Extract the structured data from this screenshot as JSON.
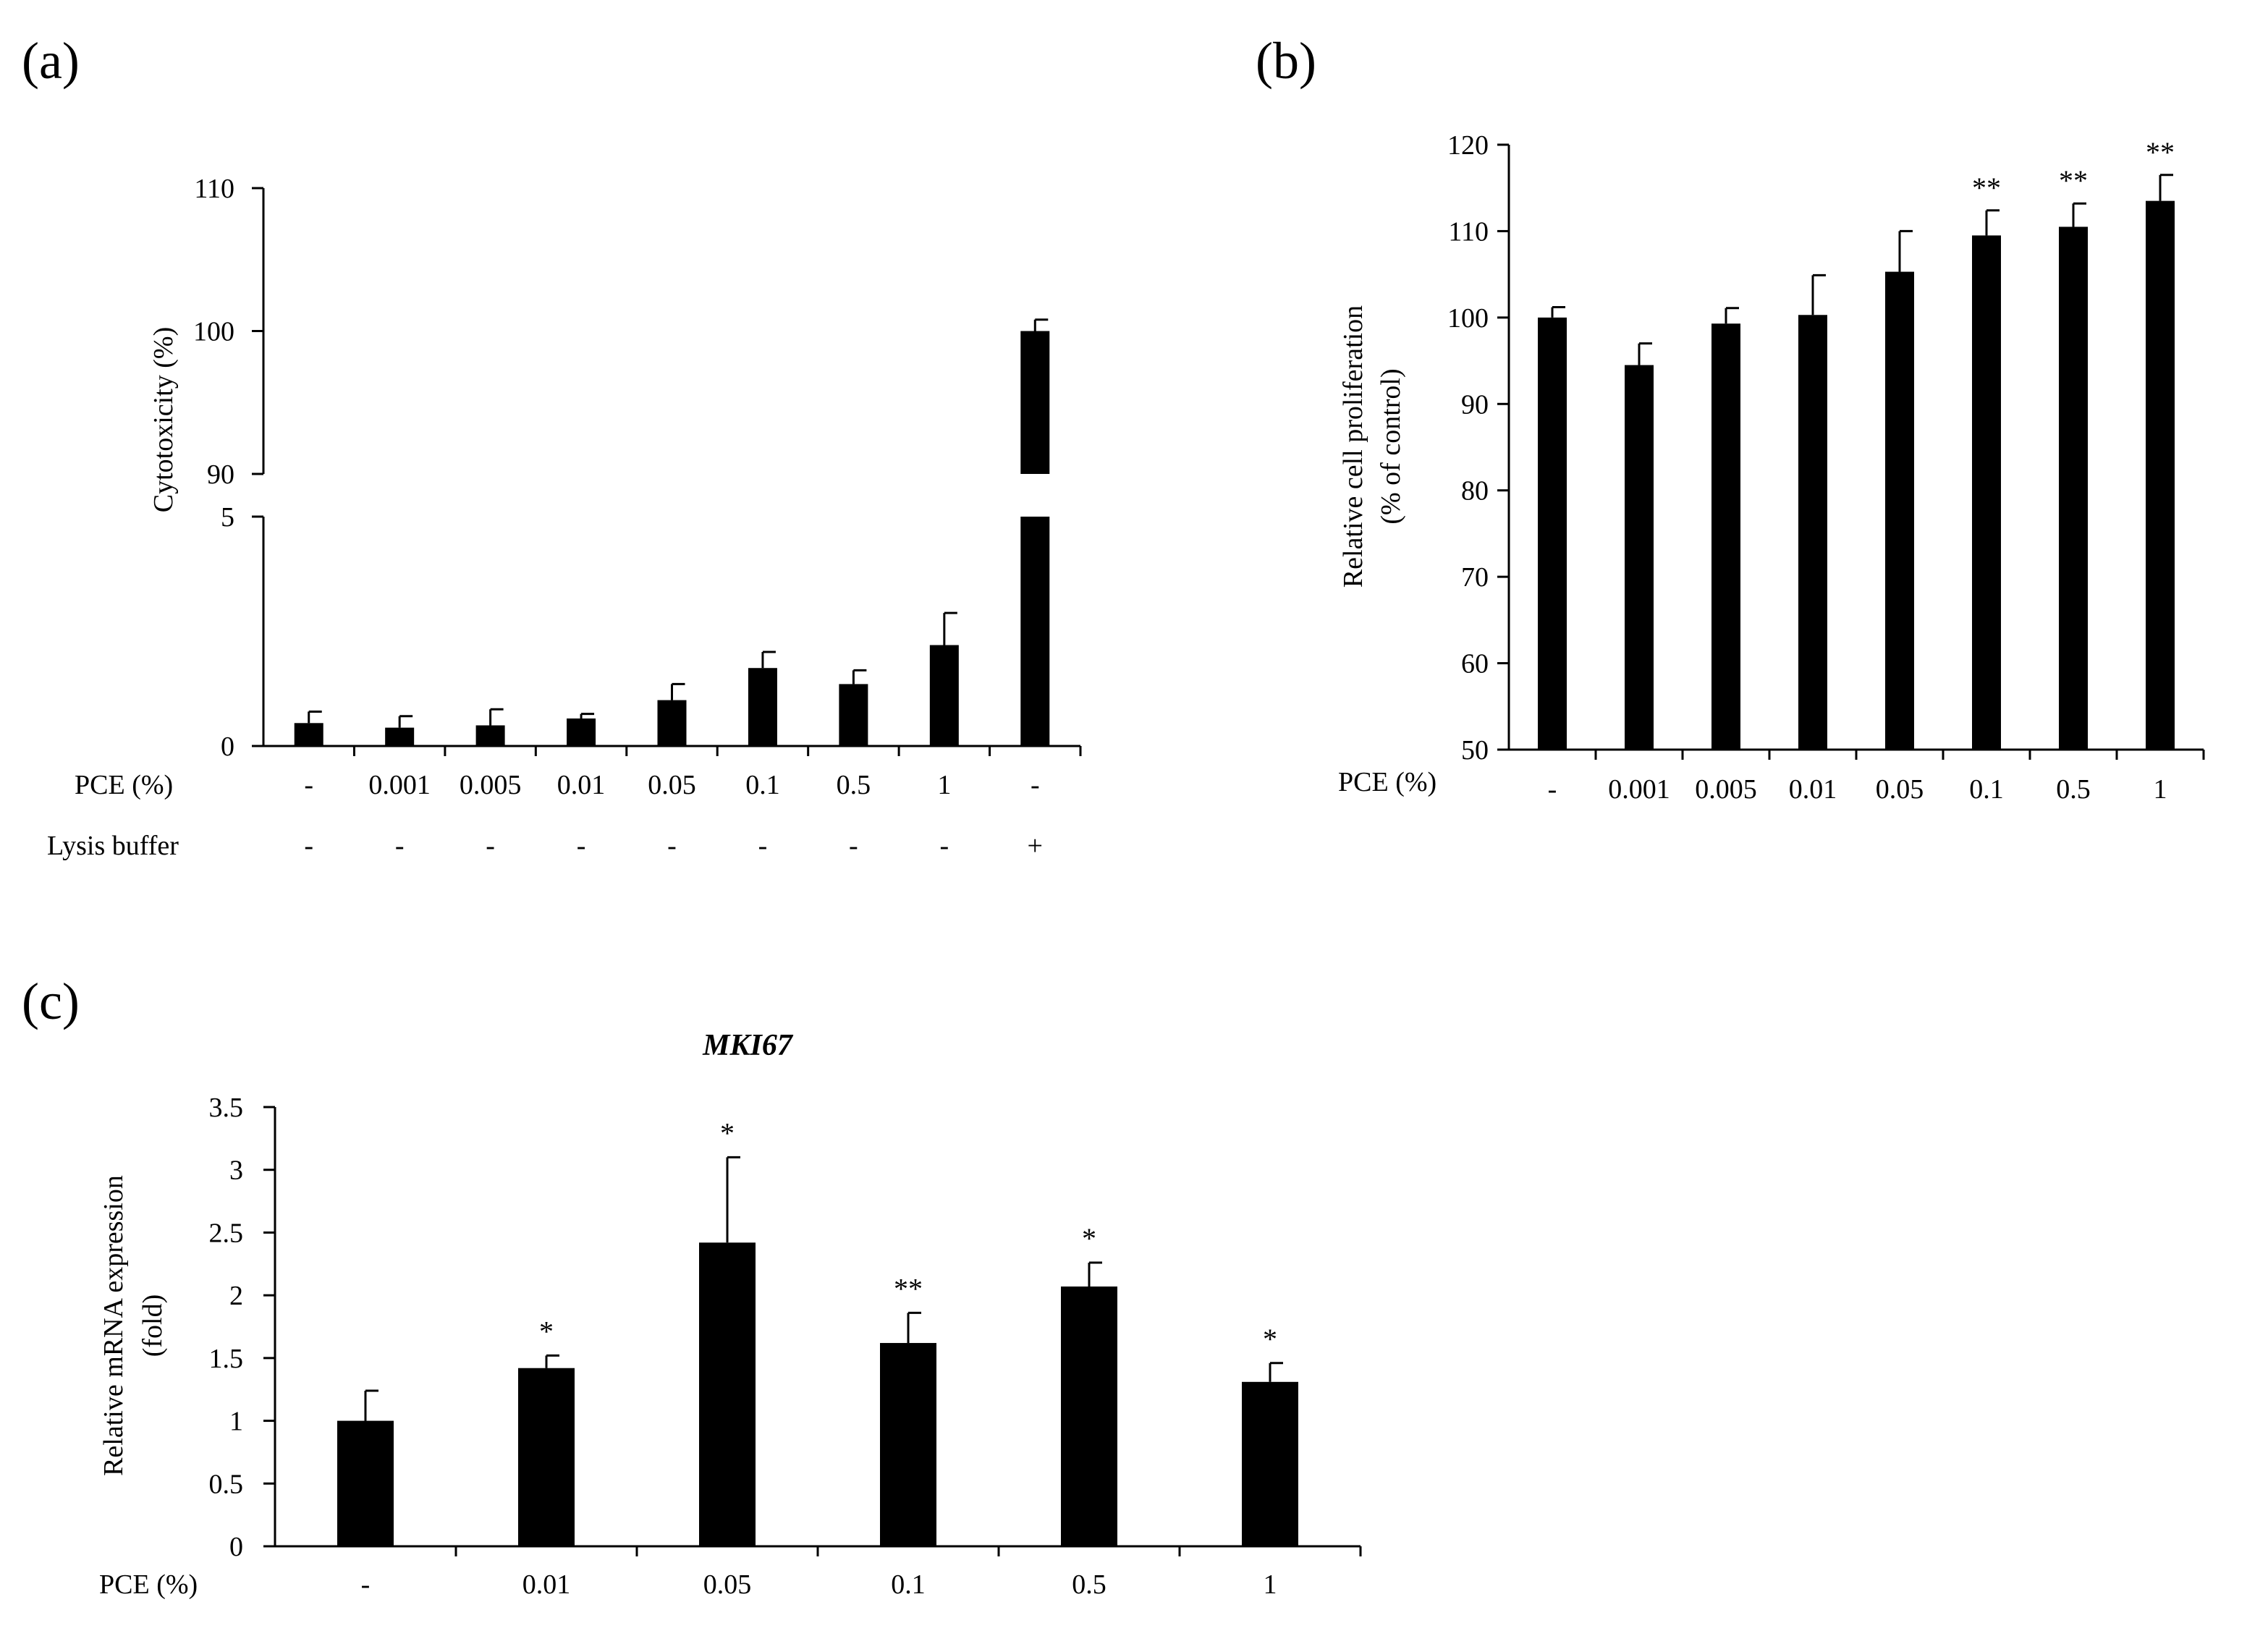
{
  "panels": {
    "a": "(a)",
    "b": "(b)",
    "c": "(c)"
  },
  "chart_data": [
    {
      "id": "a",
      "type": "bar",
      "title": "",
      "ylabel": "Cytotoxicity (%)",
      "axis_break": true,
      "ylim_lower": [
        0,
        5
      ],
      "ylim_upper": [
        90,
        110
      ],
      "yticks_lower": [
        "0",
        "5"
      ],
      "yticks_upper": [
        "90",
        "100",
        "110"
      ],
      "row_labels": [
        "PCE (%)",
        "Lysis buffer"
      ],
      "categories": [
        "-",
        "0.001",
        "0.005",
        "0.01",
        "0.05",
        "0.1",
        "0.5",
        "1",
        "-"
      ],
      "lysis_buffer": [
        "-",
        "-",
        "-",
        "-",
        "-",
        "-",
        "-",
        "-",
        "+"
      ],
      "values": [
        0.5,
        0.4,
        0.45,
        0.6,
        1.0,
        1.7,
        1.35,
        2.2,
        100
      ],
      "errors": [
        0.25,
        0.25,
        0.35,
        0.1,
        0.35,
        0.35,
        0.3,
        0.7,
        0.8
      ],
      "significance": [
        "",
        "",
        "",
        "",
        "",
        "",
        "",
        "",
        ""
      ]
    },
    {
      "id": "b",
      "type": "bar",
      "title": "",
      "ylabel": [
        "Relative cell proliferation",
        "(% of control)"
      ],
      "xlabel": "PCE (%)",
      "ylim": [
        50,
        120
      ],
      "yticks": [
        "50",
        "60",
        "70",
        "80",
        "90",
        "100",
        "110",
        "120"
      ],
      "categories": [
        "-",
        "0.001",
        "0.005",
        "0.01",
        "0.05",
        "0.1",
        "0.5",
        "1"
      ],
      "values": [
        100,
        94.5,
        99.3,
        100.3,
        105.3,
        109.5,
        110.5,
        113.5
      ],
      "errors": [
        1.2,
        2.5,
        1.8,
        4.6,
        4.7,
        2.9,
        2.7,
        3.0
      ],
      "significance": [
        "",
        "",
        "",
        "",
        "",
        "**",
        "**",
        "**"
      ]
    },
    {
      "id": "c",
      "type": "bar",
      "title": "MKI67",
      "ylabel": [
        "Relative mRNA expression",
        "(fold)"
      ],
      "xlabel": "PCE (%)",
      "ylim": [
        0,
        3.5
      ],
      "yticks": [
        "0",
        "0.5",
        "1",
        "1.5",
        "2",
        "2.5",
        "3",
        "3.5"
      ],
      "categories": [
        "-",
        "0.01",
        "0.05",
        "0.1",
        "0.5",
        "1"
      ],
      "values": [
        1.0,
        1.42,
        2.42,
        1.62,
        2.07,
        1.31
      ],
      "errors": [
        0.24,
        0.1,
        0.68,
        0.24,
        0.19,
        0.15
      ],
      "significance": [
        "",
        "*",
        "*",
        "**",
        "*",
        "*"
      ]
    }
  ]
}
